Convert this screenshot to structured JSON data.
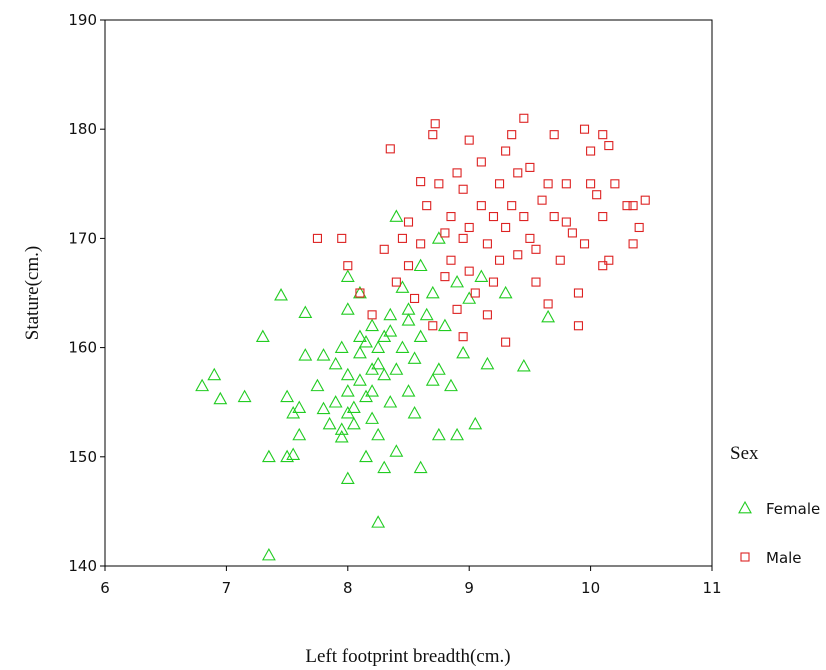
{
  "chart_data": {
    "type": "scatter",
    "xlabel": "Left footprint breadth(cm.)",
    "ylabel": "Stature(cm.)",
    "legend_title": "Sex",
    "legend": "right",
    "xlim": [
      6,
      11
    ],
    "xticks": [
      6,
      7,
      8,
      9,
      10,
      11
    ],
    "ylim": [
      140,
      190
    ],
    "yticks": [
      140,
      150,
      160,
      170,
      180,
      190
    ],
    "series": [
      {
        "name": "Female",
        "color": "#22cc22",
        "marker": "triangle",
        "x": [
          6.8,
          6.9,
          6.95,
          7.15,
          7.3,
          7.35,
          7.35,
          7.45,
          7.5,
          7.5,
          7.55,
          7.55,
          7.6,
          7.6,
          7.65,
          7.65,
          7.75,
          7.8,
          7.8,
          7.85,
          7.9,
          7.9,
          7.95,
          7.95,
          8.0,
          8.0,
          8.0,
          8.0,
          8.0,
          8.05,
          8.05,
          8.1,
          8.1,
          8.1,
          8.1,
          8.15,
          8.15,
          8.2,
          8.2,
          8.2,
          8.2,
          8.25,
          8.25,
          8.25,
          8.3,
          8.3,
          8.3,
          8.35,
          8.35,
          8.4,
          8.4,
          8.4,
          8.45,
          8.5,
          8.5,
          8.55,
          8.6,
          8.6,
          8.6,
          8.7,
          8.7,
          8.75,
          8.75,
          8.8,
          8.85,
          8.9,
          8.9,
          8.95,
          9.0,
          9.05,
          9.1,
          9.15,
          9.3,
          9.45,
          9.65,
          8.15,
          8.25,
          8.35,
          8.45,
          8.65,
          8.0,
          7.95,
          8.55,
          8.75,
          8.5
        ],
        "values": [
          156.5,
          157.5,
          155.3,
          155.5,
          161,
          150,
          141,
          164.8,
          155.5,
          150,
          154,
          150.2,
          152,
          154.5,
          163.2,
          159.3,
          156.5,
          159.3,
          154.4,
          153,
          158.5,
          155,
          152.5,
          151.8,
          163.5,
          166.5,
          157.5,
          156,
          148,
          154.5,
          153,
          165,
          161,
          159.5,
          157,
          150,
          155.5,
          162,
          158,
          156,
          153.5,
          152,
          144,
          160,
          161,
          157.5,
          149,
          163,
          155,
          172,
          158,
          150.5,
          160,
          163.5,
          156,
          154,
          167.5,
          161,
          149,
          165,
          157,
          170,
          152,
          162,
          156.5,
          166,
          152,
          159.5,
          164.5,
          153,
          166.5,
          158.5,
          165,
          158.3,
          162.8,
          160.5,
          158.5,
          161.5,
          165.5,
          163,
          154,
          160,
          159,
          158,
          162.5
        ]
      },
      {
        "name": "Male",
        "color": "#dd2222",
        "marker": "square",
        "x": [
          7.75,
          7.95,
          8.0,
          8.1,
          8.2,
          8.3,
          8.35,
          8.4,
          8.45,
          8.5,
          8.5,
          8.55,
          8.6,
          8.6,
          8.65,
          8.7,
          8.72,
          8.75,
          8.8,
          8.8,
          8.85,
          8.85,
          8.9,
          8.9,
          8.95,
          8.95,
          9.0,
          9.0,
          9.0,
          9.05,
          9.1,
          9.1,
          9.15,
          9.2,
          9.2,
          9.25,
          9.25,
          9.3,
          9.3,
          9.3,
          9.35,
          9.35,
          9.4,
          9.4,
          9.45,
          9.45,
          9.5,
          9.5,
          9.55,
          9.6,
          9.65,
          9.7,
          9.7,
          9.75,
          9.8,
          9.85,
          9.9,
          9.9,
          9.95,
          10.0,
          10.0,
          10.05,
          10.1,
          10.1,
          10.15,
          10.2,
          10.3,
          10.35,
          10.4,
          10.45,
          9.95,
          10.15,
          9.8,
          9.65,
          8.95,
          9.15,
          8.7,
          9.55,
          10.1,
          10.35
        ],
        "values": [
          170,
          170,
          167.5,
          165,
          163,
          169,
          178.2,
          166,
          170,
          171.5,
          167.5,
          164.5,
          175.2,
          169.5,
          173,
          179.5,
          180.5,
          175,
          170.5,
          166.5,
          172,
          168,
          176,
          163.5,
          174.5,
          170,
          179,
          171,
          167,
          165,
          177,
          173,
          169.5,
          172,
          166,
          175,
          168,
          178,
          171,
          160.5,
          179.5,
          173,
          176,
          168.5,
          181,
          172,
          176.5,
          170,
          166,
          173.5,
          175,
          179.5,
          172,
          168,
          175,
          170.5,
          165,
          162,
          169.5,
          178,
          175,
          174,
          179.5,
          172,
          168,
          175,
          173,
          169.5,
          171,
          173.5,
          180,
          178.5,
          171.5,
          164,
          161,
          163,
          162,
          169,
          167.5,
          173
        ]
      }
    ]
  }
}
